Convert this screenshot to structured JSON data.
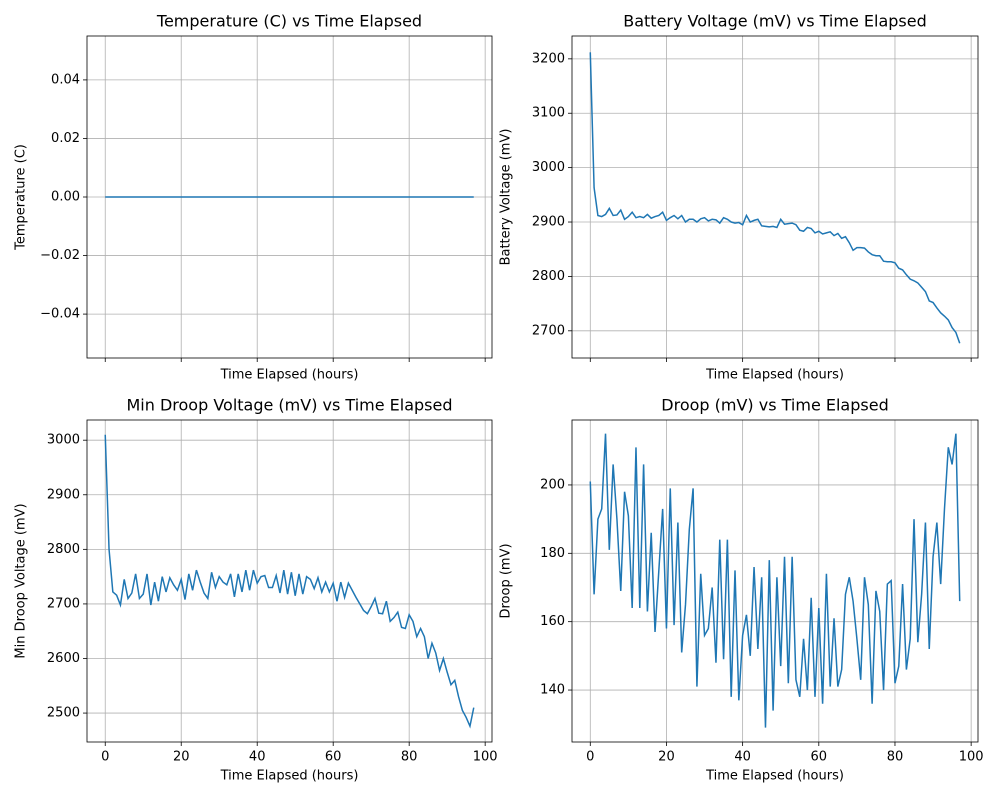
{
  "chart_data": [
    {
      "type": "line",
      "title": "Temperature (C) vs Time Elapsed",
      "xlabel": "Time Elapsed (hours)",
      "ylabel": "Temperature (C)",
      "color": "#1f77b4",
      "grid": true,
      "show_xtick_labels": false,
      "x": [
        0,
        1,
        2,
        3,
        4,
        5,
        6,
        7,
        8,
        9,
        10,
        11,
        12,
        13,
        14,
        15,
        16,
        17,
        18,
        19,
        20,
        21,
        22,
        23,
        24,
        25,
        26,
        27,
        28,
        29,
        30,
        31,
        32,
        33,
        34,
        35,
        36,
        37,
        38,
        39,
        40,
        41,
        42,
        43,
        44,
        45,
        46,
        47,
        48,
        49,
        50,
        51,
        52,
        53,
        54,
        55,
        56,
        57,
        58,
        59,
        60,
        61,
        62,
        63,
        64,
        65,
        66,
        67,
        68,
        69,
        70,
        71,
        72,
        73,
        74,
        75,
        76,
        77,
        78,
        79,
        80,
        81,
        82,
        83,
        84,
        85,
        86,
        87,
        88,
        89,
        90,
        91,
        92,
        93,
        94,
        95,
        96,
        97
      ],
      "values": [
        0,
        0,
        0,
        0,
        0,
        0,
        0,
        0,
        0,
        0,
        0,
        0,
        0,
        0,
        0,
        0,
        0,
        0,
        0,
        0,
        0,
        0,
        0,
        0,
        0,
        0,
        0,
        0,
        0,
        0,
        0,
        0,
        0,
        0,
        0,
        0,
        0,
        0,
        0,
        0,
        0,
        0,
        0,
        0,
        0,
        0,
        0,
        0,
        0,
        0,
        0,
        0,
        0,
        0,
        0,
        0,
        0,
        0,
        0,
        0,
        0,
        0,
        0,
        0,
        0,
        0,
        0,
        0,
        0,
        0,
        0,
        0,
        0,
        0,
        0,
        0,
        0,
        0,
        0,
        0,
        0,
        0,
        0,
        0,
        0,
        0,
        0,
        0,
        0,
        0,
        0,
        0,
        0,
        0,
        0,
        0,
        0,
        0
      ],
      "xlim": [
        -4.8,
        101.8
      ],
      "xticks": [
        0,
        20,
        40,
        60,
        80,
        100
      ],
      "ylim": [
        -0.055,
        0.055
      ],
      "yticks": [
        {
          "value": -0.04,
          "label": "−0.04"
        },
        {
          "value": -0.02,
          "label": "−0.02"
        },
        {
          "value": 0,
          "label": "0.00"
        },
        0.02,
        0.04
      ]
    },
    {
      "type": "line",
      "title": "Battery Voltage (mV) vs Time Elapsed",
      "xlabel": "Time Elapsed (hours)",
      "ylabel": "Battery Voltage (mV)",
      "color": "#1f77b4",
      "grid": true,
      "show_xtick_labels": false,
      "x": [
        0,
        1,
        2,
        3,
        4,
        5,
        6,
        7,
        8,
        9,
        10,
        11,
        12,
        13,
        14,
        15,
        16,
        17,
        18,
        19,
        20,
        21,
        22,
        23,
        24,
        25,
        26,
        27,
        28,
        29,
        30,
        31,
        32,
        33,
        34,
        35,
        36,
        37,
        38,
        39,
        40,
        41,
        42,
        43,
        44,
        45,
        46,
        47,
        48,
        49,
        50,
        51,
        52,
        53,
        54,
        55,
        56,
        57,
        58,
        59,
        60,
        61,
        62,
        63,
        64,
        65,
        66,
        67,
        68,
        69,
        70,
        71,
        72,
        73,
        74,
        75,
        76,
        77,
        78,
        79,
        80,
        81,
        82,
        83,
        84,
        85,
        86,
        87,
        88,
        89,
        90,
        91,
        92,
        93,
        94,
        95,
        96,
        97
      ],
      "values": [
        3212,
        2963,
        2912,
        2910,
        2914,
        2925,
        2912,
        2913,
        2922,
        2905,
        2910,
        2918,
        2908,
        2910,
        2908,
        2914,
        2907,
        2910,
        2912,
        2918,
        2903,
        2908,
        2912,
        2906,
        2912,
        2900,
        2905,
        2905,
        2900,
        2906,
        2908,
        2902,
        2905,
        2904,
        2898,
        2908,
        2905,
        2900,
        2898,
        2899,
        2895,
        2912,
        2900,
        2903,
        2905,
        2893,
        2892,
        2891,
        2892,
        2890,
        2905,
        2896,
        2897,
        2898,
        2895,
        2885,
        2883,
        2890,
        2888,
        2880,
        2883,
        2878,
        2880,
        2882,
        2875,
        2879,
        2870,
        2873,
        2862,
        2848,
        2853,
        2853,
        2852,
        2845,
        2840,
        2838,
        2838,
        2828,
        2827,
        2827,
        2825,
        2815,
        2812,
        2803,
        2795,
        2792,
        2788,
        2780,
        2772,
        2755,
        2752,
        2742,
        2733,
        2727,
        2720,
        2706,
        2697,
        2677
      ],
      "xlim": [
        -4.8,
        101.8
      ],
      "xticks": [
        0,
        20,
        40,
        60,
        80,
        100
      ],
      "ylim": [
        2650,
        3242
      ],
      "yticks": [
        2700,
        2800,
        2900,
        3000,
        3100,
        3200
      ]
    },
    {
      "type": "line",
      "title": "Min Droop Voltage (mV) vs Time Elapsed",
      "xlabel": "Time Elapsed (hours)",
      "ylabel": "Min Droop Voltage (mV)",
      "color": "#1f77b4",
      "grid": true,
      "show_xtick_labels": true,
      "x": [
        0,
        1,
        2,
        3,
        4,
        5,
        6,
        7,
        8,
        9,
        10,
        11,
        12,
        13,
        14,
        15,
        16,
        17,
        18,
        19,
        20,
        21,
        22,
        23,
        24,
        25,
        26,
        27,
        28,
        29,
        30,
        31,
        32,
        33,
        34,
        35,
        36,
        37,
        38,
        39,
        40,
        41,
        42,
        43,
        44,
        45,
        46,
        47,
        48,
        49,
        50,
        51,
        52,
        53,
        54,
        55,
        56,
        57,
        58,
        59,
        60,
        61,
        62,
        63,
        64,
        65,
        66,
        67,
        68,
        69,
        70,
        71,
        72,
        73,
        74,
        75,
        76,
        77,
        78,
        79,
        80,
        81,
        82,
        83,
        84,
        85,
        86,
        87,
        88,
        89,
        90,
        91,
        92,
        93,
        94,
        95,
        96,
        97
      ],
      "values": [
        3010,
        2800,
        2722,
        2716,
        2698,
        2745,
        2710,
        2720,
        2755,
        2710,
        2718,
        2755,
        2698,
        2740,
        2705,
        2750,
        2722,
        2748,
        2735,
        2725,
        2745,
        2708,
        2755,
        2725,
        2762,
        2740,
        2720,
        2710,
        2758,
        2730,
        2750,
        2740,
        2735,
        2755,
        2713,
        2755,
        2722,
        2762,
        2725,
        2762,
        2738,
        2750,
        2752,
        2730,
        2730,
        2752,
        2720,
        2762,
        2718,
        2758,
        2715,
        2755,
        2718,
        2750,
        2745,
        2728,
        2748,
        2722,
        2740,
        2722,
        2738,
        2705,
        2740,
        2712,
        2738,
        2725,
        2712,
        2700,
        2688,
        2682,
        2695,
        2710,
        2683,
        2682,
        2705,
        2668,
        2675,
        2685,
        2657,
        2655,
        2680,
        2668,
        2640,
        2655,
        2640,
        2600,
        2628,
        2610,
        2578,
        2600,
        2575,
        2552,
        2560,
        2530,
        2505,
        2492,
        2476,
        2510
      ],
      "xlim": [
        -4.8,
        101.8
      ],
      "xticks": [
        0,
        20,
        40,
        60,
        80,
        100
      ],
      "ylim": [
        2447,
        3037
      ],
      "yticks": [
        2500,
        2600,
        2700,
        2800,
        2900,
        3000
      ]
    },
    {
      "type": "line",
      "title": "Droop (mV) vs Time Elapsed",
      "xlabel": "Time Elapsed (hours)",
      "ylabel": "Droop (mV)",
      "color": "#1f77b4",
      "grid": true,
      "show_xtick_labels": true,
      "x": [
        0,
        1,
        2,
        3,
        4,
        5,
        6,
        7,
        8,
        9,
        10,
        11,
        12,
        13,
        14,
        15,
        16,
        17,
        18,
        19,
        20,
        21,
        22,
        23,
        24,
        25,
        26,
        27,
        28,
        29,
        30,
        31,
        32,
        33,
        34,
        35,
        36,
        37,
        38,
        39,
        40,
        41,
        42,
        43,
        44,
        45,
        46,
        47,
        48,
        49,
        50,
        51,
        52,
        53,
        54,
        55,
        56,
        57,
        58,
        59,
        60,
        61,
        62,
        63,
        64,
        65,
        66,
        67,
        68,
        69,
        70,
        71,
        72,
        73,
        74,
        75,
        76,
        77,
        78,
        79,
        80,
        81,
        82,
        83,
        84,
        85,
        86,
        87,
        88,
        89,
        90,
        91,
        92,
        93,
        94,
        95,
        96,
        97
      ],
      "values": [
        201,
        168,
        190,
        193,
        215,
        181,
        206,
        190,
        169,
        198,
        191,
        164,
        211,
        164,
        206,
        163,
        186,
        157,
        175,
        193,
        158,
        199,
        159,
        189,
        151,
        165,
        187,
        199,
        141,
        174,
        156,
        158,
        170,
        148,
        184,
        149,
        184,
        138,
        175,
        137,
        156,
        162,
        150,
        176,
        152,
        173,
        129,
        178,
        134,
        173,
        147,
        179,
        142,
        179,
        143,
        138,
        155,
        140,
        167,
        138,
        164,
        136,
        174,
        141,
        161,
        141,
        146,
        168,
        173,
        166,
        155,
        143,
        173,
        165,
        136,
        169,
        163,
        140,
        171,
        172,
        142,
        147,
        171,
        146,
        155,
        190,
        154,
        168,
        189,
        152,
        179,
        189,
        171,
        193,
        211,
        206,
        215,
        166
      ],
      "xlim": [
        -4.8,
        101.8
      ],
      "xticks": [
        0,
        20,
        40,
        60,
        80,
        100
      ],
      "ylim": [
        124.8,
        219
      ],
      "yticks": [
        140,
        160,
        180,
        200
      ]
    }
  ]
}
